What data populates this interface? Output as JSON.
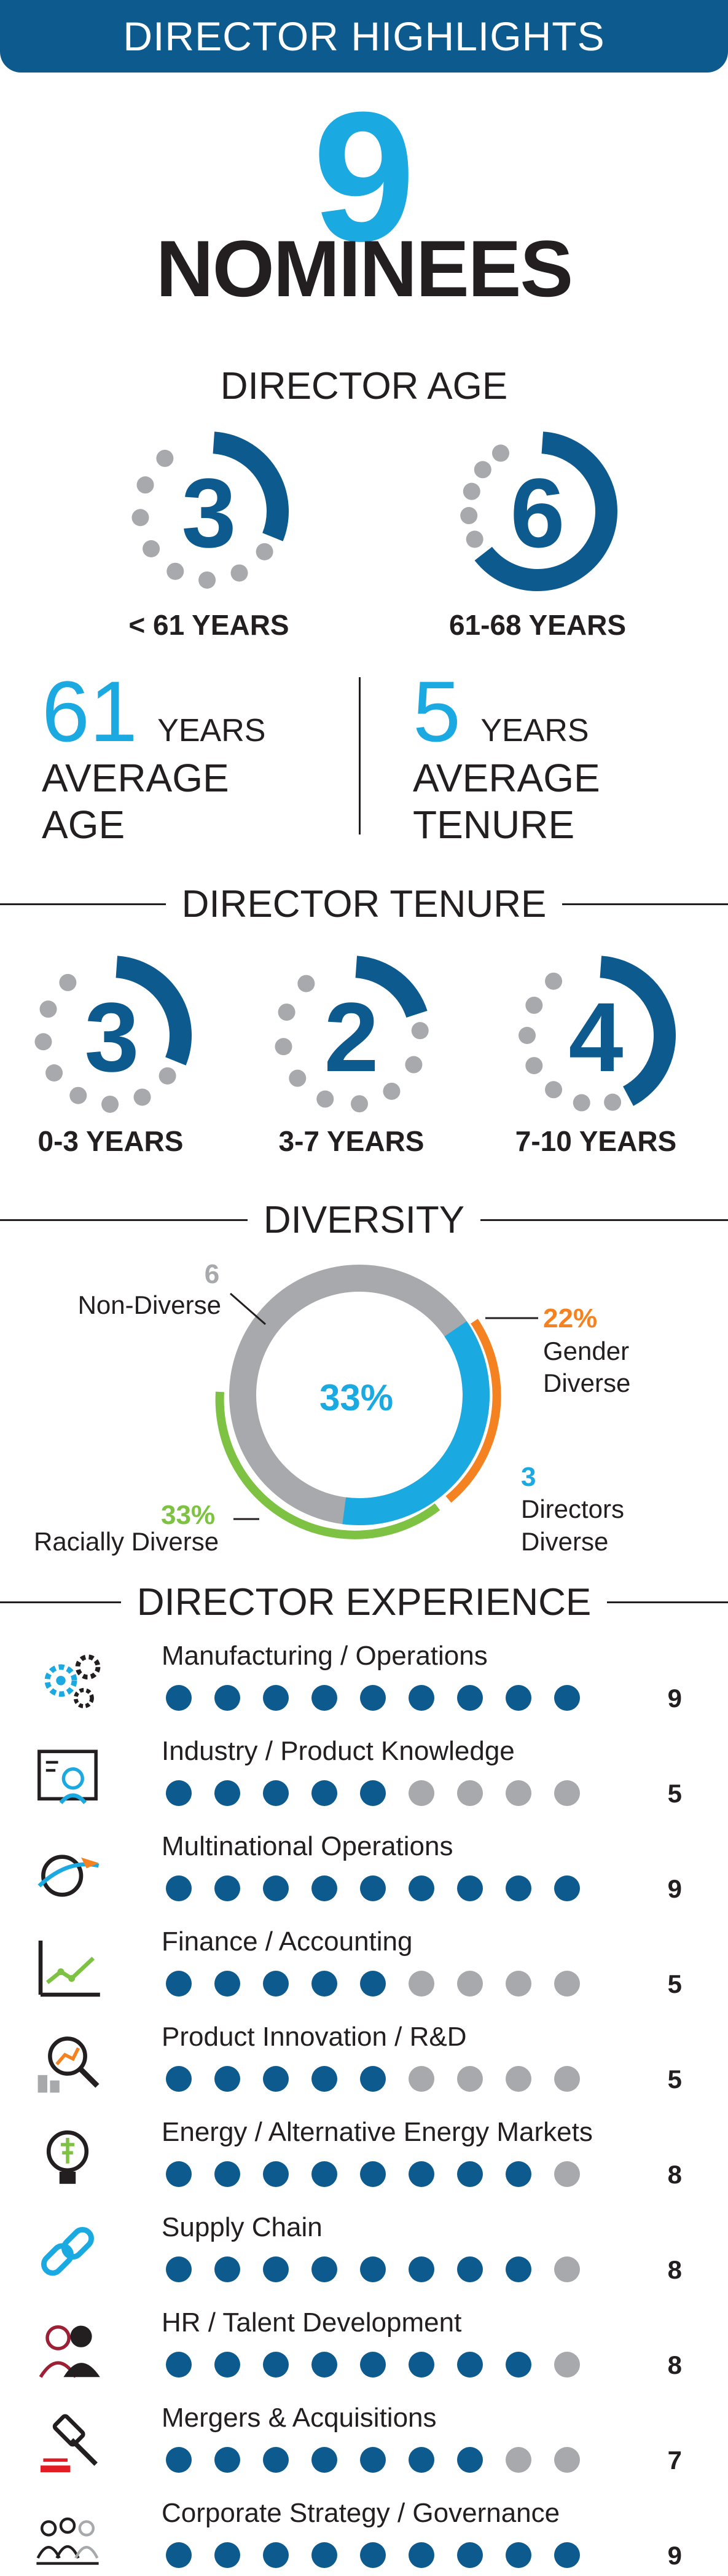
{
  "banner": "DIRECTOR HIGHLIGHTS",
  "nominees": {
    "count": "9",
    "label": "NOMINEES"
  },
  "age": {
    "title": "DIRECTOR AGE",
    "groups": [
      {
        "count": "3",
        "label": "< 61 YEARS",
        "filled": 3,
        "total": 9
      },
      {
        "count": "6",
        "label": "61-68 YEARS",
        "filled": 6,
        "total": 9
      }
    ],
    "average_age": {
      "number": "61",
      "unit": "YEARS",
      "label1": "AVERAGE",
      "label2": "AGE"
    },
    "average_tenure": {
      "number": "5",
      "unit": "YEARS",
      "label1": "AVERAGE",
      "label2": "TENURE"
    }
  },
  "tenure": {
    "title": "DIRECTOR TENURE",
    "groups": [
      {
        "count": "3",
        "label": "0-3 YEARS",
        "filled": 3,
        "total": 9
      },
      {
        "count": "2",
        "label": "3-7 YEARS",
        "filled": 2,
        "total": 9
      },
      {
        "count": "4",
        "label": "7-10 YEARS",
        "filled": 4,
        "total": 9
      }
    ]
  },
  "diversity": {
    "title": "DIVERSITY",
    "center_pct": "33%",
    "non_diverse": {
      "count": "6",
      "label": "Non-Diverse"
    },
    "gender": {
      "pct": "22%",
      "label1": "Gender",
      "label2": "Diverse"
    },
    "directors": {
      "count": "3",
      "label1": "Directors",
      "label2": "Diverse"
    },
    "racial": {
      "pct": "33%",
      "label": "Racially Diverse"
    },
    "colors": {
      "gray": "#a7a9ac",
      "blue": "#1ba9e1",
      "orange": "#f58220",
      "green": "#7dc242"
    }
  },
  "experience": {
    "title": "DIRECTOR EXPERIENCE",
    "total": 9,
    "items": [
      {
        "label": "Manufacturing / Operations",
        "count": "9",
        "value": 9,
        "icon": "gears-icon"
      },
      {
        "label": "Industry / Product Knowledge",
        "count": "5",
        "value": 5,
        "icon": "engineer-icon"
      },
      {
        "label": "Multinational Operations",
        "count": "9",
        "value": 9,
        "icon": "globe-plane-icon"
      },
      {
        "label": "Finance / Accounting",
        "count": "5",
        "value": 5,
        "icon": "line-chart-icon"
      },
      {
        "label": "Product Innovation / R&D",
        "count": "5",
        "value": 5,
        "icon": "magnifier-chart-icon"
      },
      {
        "label": "Energy / Alternative Energy Markets",
        "count": "8",
        "value": 8,
        "icon": "lightbulb-icon"
      },
      {
        "label": "Supply Chain",
        "count": "8",
        "value": 8,
        "icon": "chain-link-icon"
      },
      {
        "label": "HR / Talent Development",
        "count": "8",
        "value": 8,
        "icon": "people-icon"
      },
      {
        "label": "Mergers & Acquisitions",
        "count": "7",
        "value": 7,
        "icon": "gavel-icon"
      },
      {
        "label": "Corporate Strategy / Governance",
        "count": "9",
        "value": 9,
        "icon": "board-icon"
      }
    ]
  },
  "colors": {
    "navy": "#0d5a8e",
    "cyan": "#1ba9e1",
    "gray": "#a7a9ac",
    "text": "#231f20"
  }
}
